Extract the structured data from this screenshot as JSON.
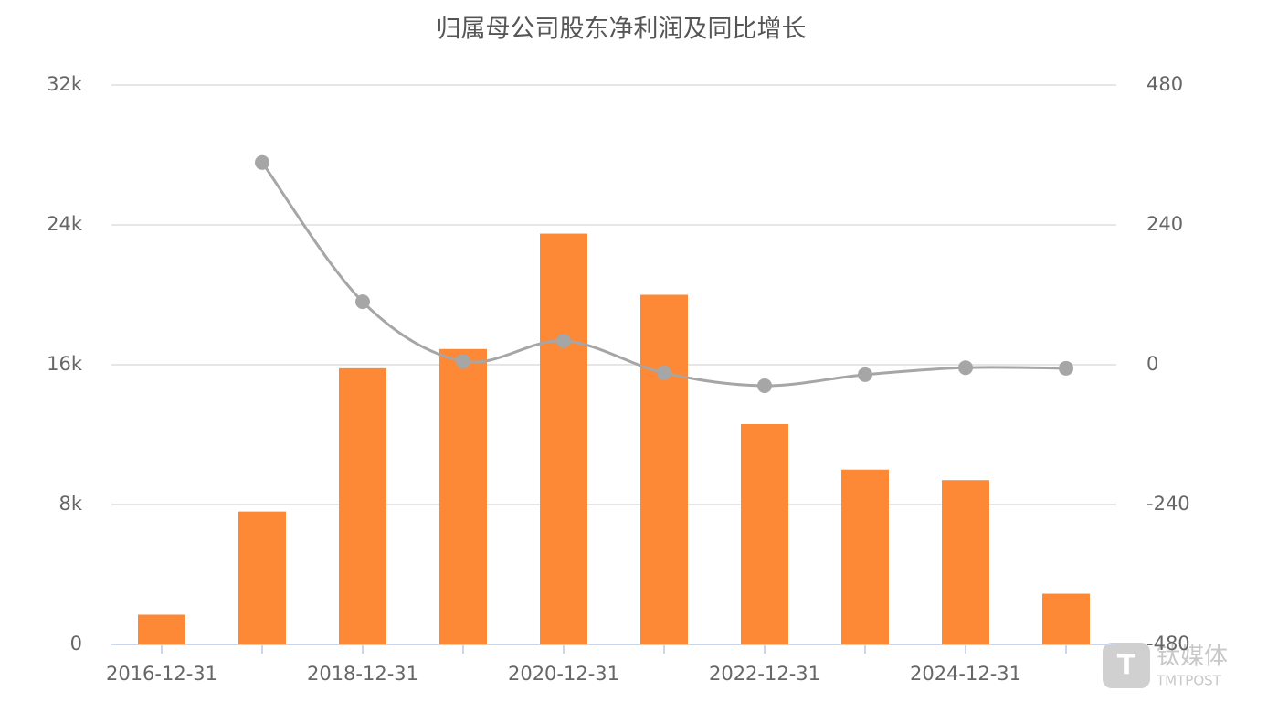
{
  "chart_data": {
    "type": "bar-line",
    "title": "归属母公司股东净利润及同比增长",
    "categories": [
      "2016-12-31",
      null,
      "2018-12-31",
      null,
      "2020-12-31",
      null,
      "2022-12-31",
      null,
      "2024-12-31",
      null
    ],
    "series": [
      {
        "type": "bar",
        "color": "#fd8835",
        "values": [
          1700,
          7600,
          15800,
          16900,
          23500,
          20000,
          12600,
          10000,
          9400,
          2900
        ]
      },
      {
        "type": "line",
        "axis": "y2",
        "color": "#a6a6a6",
        "values": [
          null,
          347,
          108,
          6,
          41,
          -14,
          -36,
          -17,
          -5,
          -6
        ]
      }
    ],
    "ylim": [
      0,
      32000
    ],
    "yticks": [
      0,
      {
        "value": 8000,
        "label": "8k"
      },
      {
        "value": 16000,
        "label": "16k"
      },
      {
        "value": 24000,
        "label": "24k"
      },
      {
        "value": 32000,
        "label": "32k"
      }
    ],
    "y2lim": [
      -480,
      480
    ],
    "y2ticks": [
      -480,
      -240,
      0,
      240,
      480
    ],
    "grid": true,
    "watermark": [
      "钛媒体",
      "TMTPOST"
    ]
  }
}
